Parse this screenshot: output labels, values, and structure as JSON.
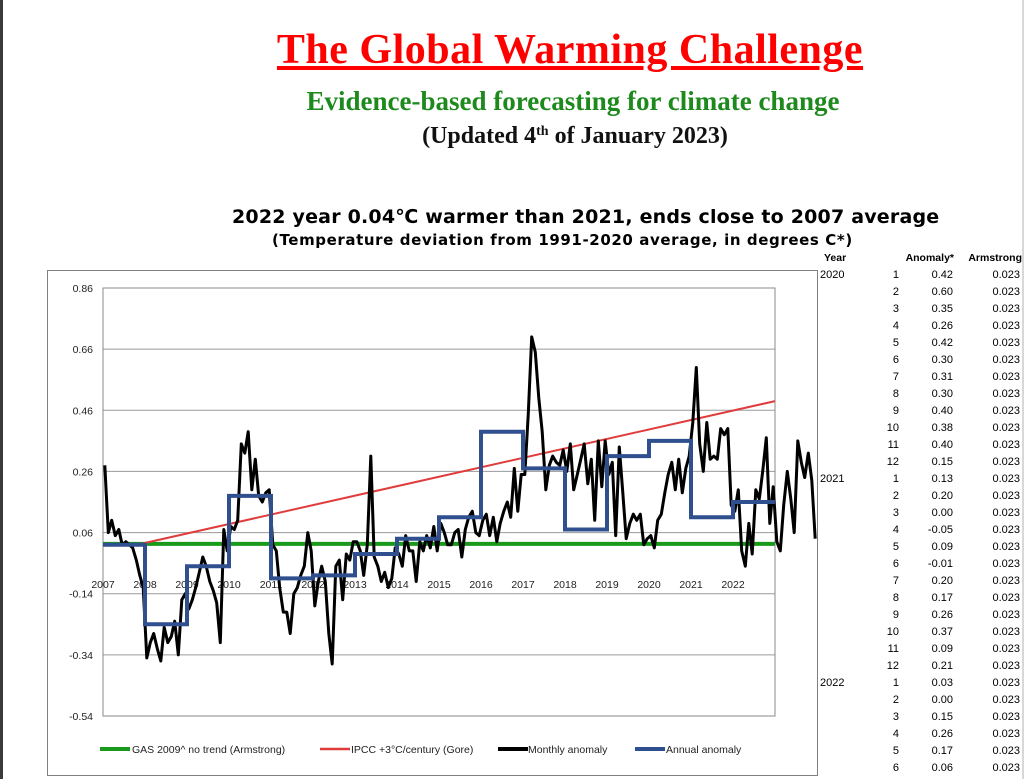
{
  "header": {
    "title": "The Global Warming Challenge",
    "subtitle": "Evidence-based forecasting for climate change",
    "updated_prefix": "(Updated 4",
    "updated_sup": "th",
    "updated_suffix": " of January 2023)"
  },
  "chart_data": {
    "type": "line",
    "title": "2022 year 0.04℃ warmer than 2021, ends close to 2007 average",
    "subtitle": "(Temperature deviation from 1991-2020 average, in degrees C*)",
    "xlim": [
      2007,
      2023
    ],
    "ylim": [
      -0.54,
      0.86
    ],
    "yticks": [
      "0.86",
      "0.66",
      "0.46",
      "0.26",
      "0.06",
      "-0.14",
      "-0.34",
      "-0.54"
    ],
    "xticks": [
      "2007",
      "2008",
      "2009",
      "2010",
      "2011",
      "2012",
      "2013",
      "2014",
      "2015",
      "2016",
      "2017",
      "2018",
      "2019",
      "2020",
      "2021",
      "2022"
    ],
    "grid": true,
    "legend_position": "bottom",
    "colors": {
      "gas": "#1a9a1a",
      "ipcc": "#e03c3c",
      "monthly": "#000000",
      "annual": "#2f4f8f"
    },
    "series": [
      {
        "name": "GAS 2009^ no trend (Armstrong)",
        "type": "constant",
        "value": 0.023,
        "x_range": [
          2007,
          2023
        ]
      },
      {
        "name": "IPCC +3°C/century (Gore)",
        "type": "linear",
        "x": [
          2007.9,
          2023
        ],
        "values": [
          0.023,
          0.49
        ]
      },
      {
        "name": "Monthly anomaly",
        "type": "monthly",
        "start": 2007,
        "values": [
          0.28,
          0.06,
          0.1,
          0.05,
          0.07,
          0.02,
          0.03,
          0.02,
          0.01,
          -0.03,
          -0.08,
          -0.12,
          -0.35,
          -0.3,
          -0.27,
          -0.32,
          -0.36,
          -0.25,
          -0.3,
          -0.28,
          -0.23,
          -0.34,
          -0.16,
          -0.14,
          -0.19,
          -0.16,
          -0.12,
          -0.07,
          -0.02,
          -0.05,
          -0.1,
          -0.13,
          -0.17,
          -0.3,
          0.07,
          0.0,
          0.08,
          0.07,
          0.1,
          0.35,
          0.32,
          0.39,
          0.2,
          0.3,
          0.18,
          0.16,
          0.19,
          0.2,
          0.02,
          0.0,
          -0.12,
          -0.2,
          -0.2,
          -0.27,
          -0.14,
          -0.12,
          -0.08,
          -0.05,
          0.06,
          0.0,
          -0.18,
          -0.1,
          -0.05,
          -0.1,
          -0.27,
          -0.37,
          -0.05,
          -0.03,
          -0.16,
          -0.01,
          -0.03,
          0.03,
          0.03,
          0.0,
          -0.08,
          0.02,
          0.31,
          -0.02,
          -0.05,
          -0.1,
          -0.07,
          -0.12,
          -0.09,
          0.01,
          -0.01,
          -0.05,
          0.05,
          0.0,
          0.0,
          -0.1,
          0.03,
          0.0,
          0.05,
          0.01,
          0.08,
          0.0,
          0.09,
          0.06,
          0.02,
          0.02,
          0.06,
          0.07,
          -0.02,
          0.07,
          0.11,
          0.13,
          0.06,
          0.05,
          0.1,
          0.12,
          0.05,
          0.11,
          0.03,
          0.09,
          0.13,
          0.16,
          0.11,
          0.27,
          0.13,
          0.25,
          0.25,
          0.45,
          0.7,
          0.65,
          0.5,
          0.39,
          0.2,
          0.28,
          0.31,
          0.29,
          0.28,
          0.33,
          0.26,
          0.35,
          0.2,
          0.25,
          0.3,
          0.35,
          0.22,
          0.3,
          0.1,
          0.36,
          0.21,
          0.36,
          0.25,
          0.29,
          0.05,
          0.34,
          0.19,
          0.04,
          0.09,
          0.12,
          0.1,
          0.12,
          0.02,
          0.04,
          0.05,
          0.01,
          0.1,
          0.12,
          0.19,
          0.25,
          0.29,
          0.2,
          0.3,
          0.19,
          0.27,
          0.31,
          0.42,
          0.6,
          0.35,
          0.26,
          0.42,
          0.3,
          0.31,
          0.3,
          0.4,
          0.38,
          0.4,
          0.15,
          0.13,
          0.2,
          0.0,
          -0.05,
          0.09,
          -0.01,
          0.2,
          0.17,
          0.26,
          0.37,
          0.09,
          0.21,
          0.03,
          0.0,
          0.15,
          0.26,
          0.17,
          0.06,
          0.36,
          0.29,
          0.24,
          0.32,
          0.23,
          0.04
        ]
      },
      {
        "name": "Annual anomaly",
        "type": "annual",
        "years": [
          2007,
          2008,
          2009,
          2010,
          2011,
          2012,
          2013,
          2014,
          2015,
          2016,
          2017,
          2018,
          2019,
          2020,
          2021,
          2022
        ],
        "values": [
          0.02,
          -0.24,
          -0.05,
          0.18,
          -0.09,
          -0.08,
          -0.01,
          0.04,
          0.11,
          0.39,
          0.27,
          0.07,
          0.31,
          0.36,
          0.11,
          0.16
        ]
      }
    ]
  },
  "table": {
    "headers": {
      "year": "Year",
      "anomaly": "Anomaly*",
      "armstrong": "Armstrong"
    },
    "rows": [
      {
        "year": "2020",
        "month": "1",
        "anomaly": "0.42",
        "armstrong": "0.023"
      },
      {
        "year": "",
        "month": "2",
        "anomaly": "0.60",
        "armstrong": "0.023"
      },
      {
        "year": "",
        "month": "3",
        "anomaly": "0.35",
        "armstrong": "0.023"
      },
      {
        "year": "",
        "month": "4",
        "anomaly": "0.26",
        "armstrong": "0.023"
      },
      {
        "year": "",
        "month": "5",
        "anomaly": "0.42",
        "armstrong": "0.023"
      },
      {
        "year": "",
        "month": "6",
        "anomaly": "0.30",
        "armstrong": "0.023"
      },
      {
        "year": "",
        "month": "7",
        "anomaly": "0.31",
        "armstrong": "0.023"
      },
      {
        "year": "",
        "month": "8",
        "anomaly": "0.30",
        "armstrong": "0.023"
      },
      {
        "year": "",
        "month": "9",
        "anomaly": "0.40",
        "armstrong": "0.023"
      },
      {
        "year": "",
        "month": "10",
        "anomaly": "0.38",
        "armstrong": "0.023"
      },
      {
        "year": "",
        "month": "11",
        "anomaly": "0.40",
        "armstrong": "0.023"
      },
      {
        "year": "",
        "month": "12",
        "anomaly": "0.15",
        "armstrong": "0.023"
      },
      {
        "year": "2021",
        "month": "1",
        "anomaly": "0.13",
        "armstrong": "0.023"
      },
      {
        "year": "",
        "month": "2",
        "anomaly": "0.20",
        "armstrong": "0.023"
      },
      {
        "year": "",
        "month": "3",
        "anomaly": "0.00",
        "armstrong": "0.023"
      },
      {
        "year": "",
        "month": "4",
        "anomaly": "-0.05",
        "armstrong": "0.023"
      },
      {
        "year": "",
        "month": "5",
        "anomaly": "0.09",
        "armstrong": "0.023"
      },
      {
        "year": "",
        "month": "6",
        "anomaly": "-0.01",
        "armstrong": "0.023"
      },
      {
        "year": "",
        "month": "7",
        "anomaly": "0.20",
        "armstrong": "0.023"
      },
      {
        "year": "",
        "month": "8",
        "anomaly": "0.17",
        "armstrong": "0.023"
      },
      {
        "year": "",
        "month": "9",
        "anomaly": "0.26",
        "armstrong": "0.023"
      },
      {
        "year": "",
        "month": "10",
        "anomaly": "0.37",
        "armstrong": "0.023"
      },
      {
        "year": "",
        "month": "11",
        "anomaly": "0.09",
        "armstrong": "0.023"
      },
      {
        "year": "",
        "month": "12",
        "anomaly": "0.21",
        "armstrong": "0.023"
      },
      {
        "year": "2022",
        "month": "1",
        "anomaly": "0.03",
        "armstrong": "0.023"
      },
      {
        "year": "",
        "month": "2",
        "anomaly": "0.00",
        "armstrong": "0.023"
      },
      {
        "year": "",
        "month": "3",
        "anomaly": "0.15",
        "armstrong": "0.023"
      },
      {
        "year": "",
        "month": "4",
        "anomaly": "0.26",
        "armstrong": "0.023"
      },
      {
        "year": "",
        "month": "5",
        "anomaly": "0.17",
        "armstrong": "0.023"
      },
      {
        "year": "",
        "month": "6",
        "anomaly": "0.06",
        "armstrong": "0.023"
      }
    ]
  }
}
